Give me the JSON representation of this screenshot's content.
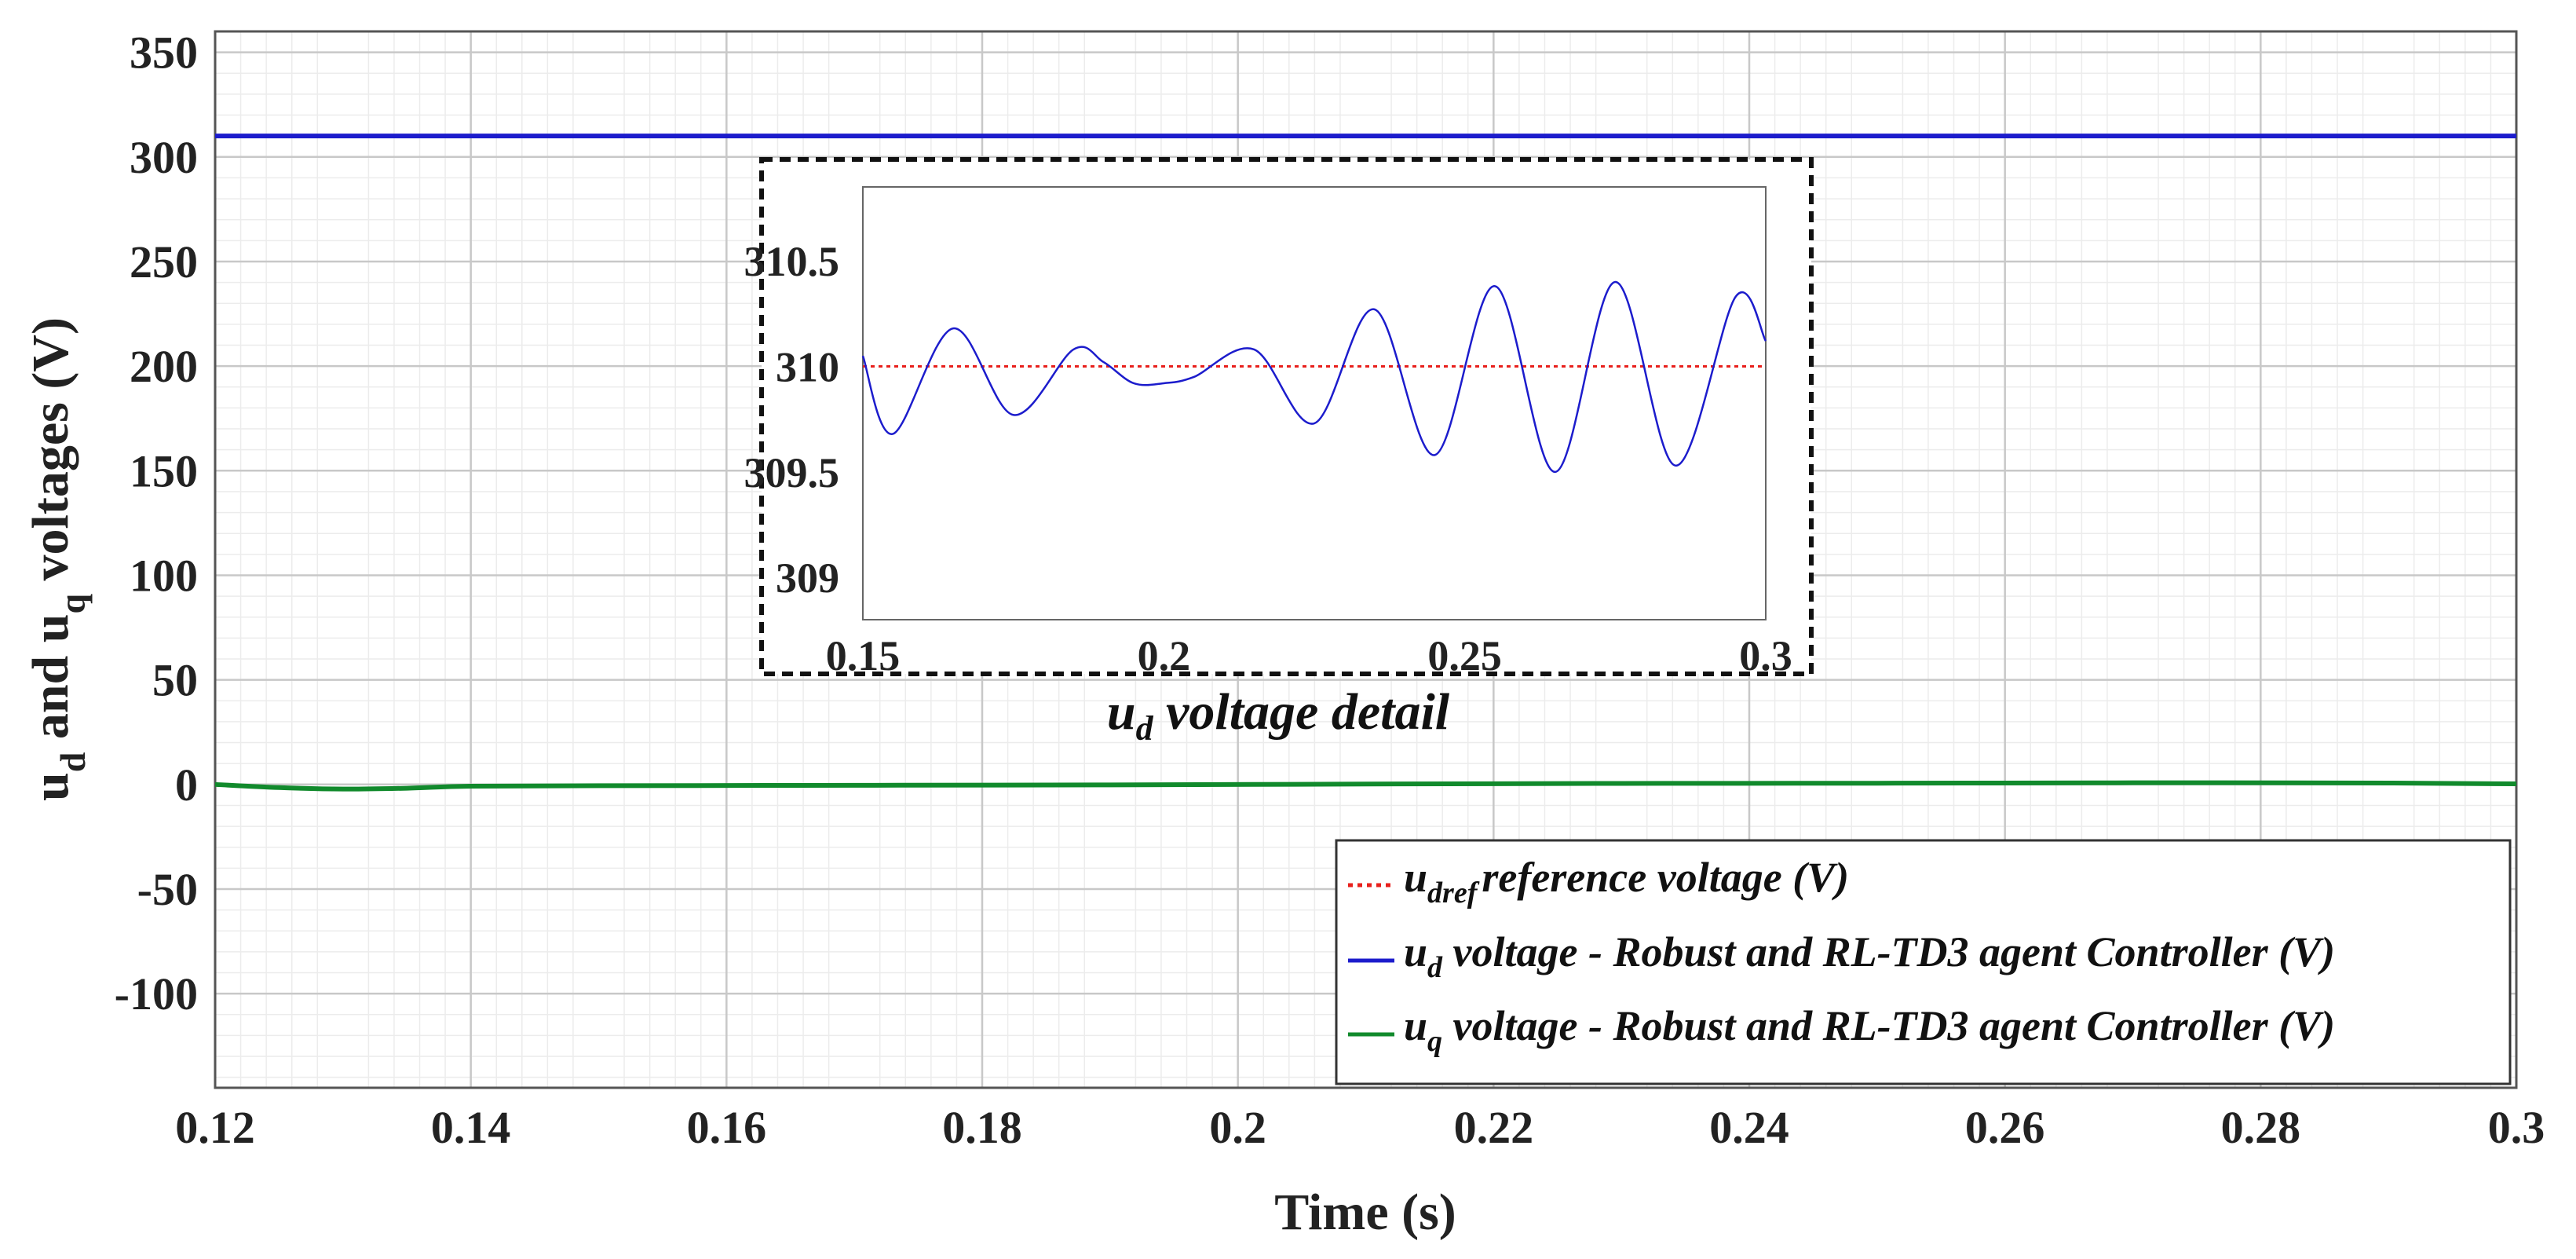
{
  "chart_data": [
    {
      "type": "line",
      "xlabel": "Time (s)",
      "ylabel": {
        "base": "u",
        "sub1": "d",
        "mid": " and ",
        "sub2": "q",
        "end": " voltages (V)"
      },
      "xlim": [
        0.12,
        0.3
      ],
      "ylim": [
        -145,
        360
      ],
      "x_ticks": [
        0.12,
        0.14,
        0.16,
        0.18,
        0.2,
        0.22,
        0.24,
        0.26,
        0.28,
        0.3
      ],
      "x_tick_labels": [
        "0.12",
        "0.14",
        "0.16",
        "0.18",
        "0.2",
        "0.22",
        "0.24",
        "0.26",
        "0.28",
        "0.3"
      ],
      "y_ticks": [
        350,
        300,
        250,
        200,
        150,
        100,
        50,
        0,
        -50,
        -100
      ],
      "y_tick_labels": [
        "350",
        "300",
        "250",
        "200",
        "150",
        "100",
        "50",
        "0",
        "-50",
        "-100"
      ],
      "grid": true,
      "series": [
        {
          "name": "u_dref reference voltage (V)",
          "color": "#e8201c",
          "style": "dotted",
          "x": [
            0.12,
            0.3
          ],
          "y": [
            310,
            310
          ]
        },
        {
          "name": "u_d voltage - Robust and RL-TD3 agent Controller (V)",
          "color": "#1c1ccc",
          "style": "solid",
          "x": [
            0.12,
            0.15,
            0.2,
            0.25,
            0.3
          ],
          "y": [
            310,
            310,
            310,
            310,
            310
          ]
        },
        {
          "name": "u_q voltage - Robust and RL-TD3 agent Controller (V)",
          "color": "#118a2c",
          "style": "solid",
          "x": [
            0.12,
            0.125,
            0.13,
            0.135,
            0.14,
            0.15,
            0.17,
            0.19,
            0.21,
            0.23,
            0.25,
            0.27,
            0.29,
            0.3
          ],
          "y": [
            0,
            -1.5,
            -2.2,
            -1.8,
            -0.8,
            -0.6,
            -0.4,
            -0.2,
            0.2,
            0.5,
            0.6,
            0.8,
            0.7,
            0.3
          ]
        }
      ],
      "legend": {
        "placement": "bottom-right",
        "entries": [
          {
            "base": "u",
            "sub": "dref",
            "text": "reference voltage (V)",
            "color": "#e8201c",
            "style": "dotted"
          },
          {
            "base": "u",
            "sub": "d",
            "text": " voltage - Robust and RL-TD3 agent Controller (V)",
            "color": "#1c1ccc",
            "style": "solid"
          },
          {
            "base": "u",
            "sub": "q",
            "text": " voltage - Robust and RL-TD3 agent Controller (V)",
            "color": "#118a2c",
            "style": "solid"
          }
        ]
      }
    },
    {
      "type": "line",
      "role": "inset",
      "caption": {
        "base": "u",
        "sub": "d",
        "text": " voltage detail"
      },
      "xlim": [
        0.15,
        0.3
      ],
      "ylim": [
        308.8,
        310.85
      ],
      "x_ticks": [
        0.15,
        0.2,
        0.25,
        0.3
      ],
      "x_tick_labels": [
        "0.15",
        "0.2",
        "0.25",
        "0.3"
      ],
      "y_ticks": [
        310.5,
        310,
        309.5,
        309
      ],
      "y_tick_labels": [
        "310.5",
        "310",
        "309.5",
        "309"
      ],
      "grid": false,
      "series": [
        {
          "name": "u_dref",
          "color": "#e8201c",
          "style": "dotted",
          "x": [
            0.15,
            0.3
          ],
          "y": [
            310,
            310
          ]
        },
        {
          "name": "u_d",
          "color": "#1c1ccc",
          "style": "solid",
          "x": [
            0.15,
            0.155,
            0.165,
            0.175,
            0.185,
            0.19,
            0.195,
            0.2,
            0.205,
            0.215,
            0.225,
            0.235,
            0.245,
            0.255,
            0.265,
            0.275,
            0.285,
            0.295,
            0.3
          ],
          "y": [
            310.05,
            309.68,
            310.18,
            309.77,
            310.08,
            310.02,
            309.92,
            309.92,
            309.95,
            310.08,
            309.73,
            310.27,
            309.58,
            310.38,
            309.5,
            310.4,
            309.53,
            310.33,
            310.12
          ]
        }
      ]
    }
  ]
}
